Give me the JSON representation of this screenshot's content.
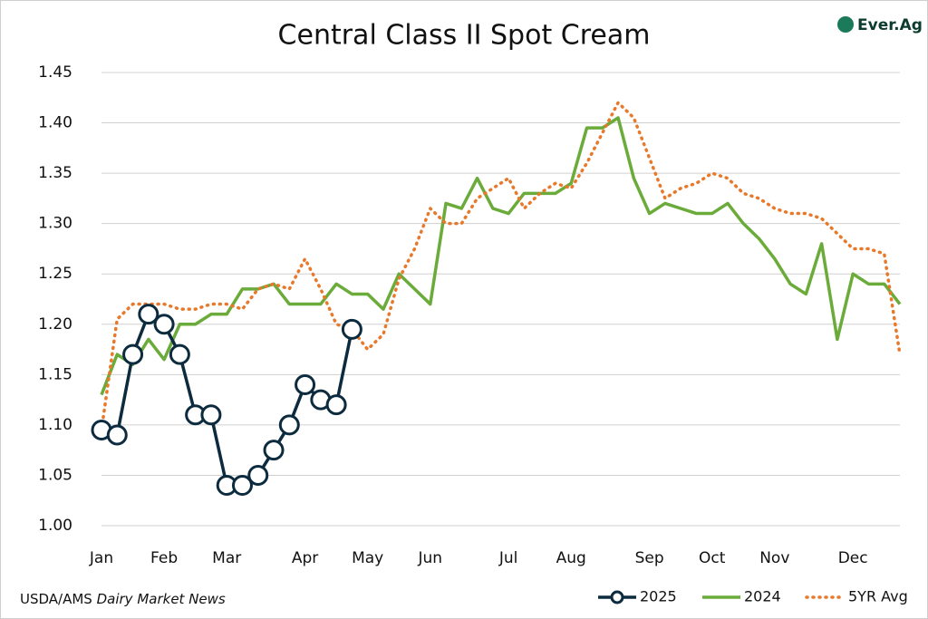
{
  "chart_data": {
    "type": "line",
    "title": "Central Class II Spot Cream",
    "source": "USDA/AMS",
    "source_italic": "Dairy Market News",
    "logo": "Ever.Ag",
    "categories": [
      "Jan",
      null,
      null,
      null,
      "Feb",
      null,
      null,
      null,
      "Mar",
      null,
      null,
      null,
      null,
      "Apr",
      null,
      null,
      null,
      "May",
      null,
      null,
      null,
      "Jun",
      null,
      null,
      null,
      null,
      "Jul",
      null,
      null,
      null,
      "Aug",
      null,
      null,
      null,
      null,
      "Sep",
      null,
      null,
      null,
      "Oct",
      null,
      null,
      null,
      "Nov",
      null,
      null,
      null,
      null,
      "Dec",
      null,
      null,
      null
    ],
    "series": [
      {
        "name": "2025",
        "color": "#0d2b3e",
        "markers": true,
        "values": [
          1.095,
          1.09,
          1.17,
          1.21,
          1.2,
          1.17,
          1.11,
          1.11,
          1.04,
          1.04,
          1.05,
          1.075,
          1.1,
          1.14,
          1.125,
          1.12,
          1.195,
          null,
          null,
          null,
          null,
          null,
          null,
          null,
          null,
          null,
          null,
          null,
          null,
          null,
          null,
          null,
          null,
          null,
          null,
          null,
          null,
          null,
          null,
          null,
          null,
          null,
          null,
          null,
          null,
          null,
          null,
          null,
          null,
          null,
          null,
          null
        ]
      },
      {
        "name": "2024",
        "color": "#6aab3a",
        "markers": false,
        "values": [
          1.13,
          1.17,
          1.16,
          1.185,
          1.165,
          1.2,
          1.2,
          1.21,
          1.21,
          1.235,
          1.235,
          1.24,
          1.22,
          1.22,
          1.22,
          1.24,
          1.23,
          1.23,
          1.215,
          1.25,
          1.235,
          1.22,
          1.32,
          1.315,
          1.345,
          1.315,
          1.31,
          1.33,
          1.33,
          1.33,
          1.34,
          1.395,
          1.395,
          1.405,
          1.345,
          1.31,
          1.32,
          1.315,
          1.31,
          1.31,
          1.32,
          1.3,
          1.285,
          1.265,
          1.24,
          1.23,
          1.28,
          1.185,
          1.25,
          1.24,
          1.24,
          1.22
        ]
      },
      {
        "name": "5YR Avg",
        "color": "#e8782a",
        "markers": false,
        "dash": true,
        "values": [
          1.095,
          1.205,
          1.22,
          1.22,
          1.22,
          1.215,
          1.215,
          1.22,
          1.22,
          1.215,
          1.235,
          1.24,
          1.235,
          1.265,
          1.235,
          1.2,
          1.195,
          1.175,
          1.19,
          1.245,
          1.275,
          1.315,
          1.3,
          1.3,
          1.325,
          1.335,
          1.345,
          1.315,
          1.33,
          1.34,
          1.335,
          1.36,
          1.39,
          1.42,
          1.405,
          1.365,
          1.325,
          1.335,
          1.34,
          1.35,
          1.345,
          1.33,
          1.325,
          1.315,
          1.31,
          1.31,
          1.305,
          1.29,
          1.275,
          1.275,
          1.27,
          1.17
        ]
      }
    ],
    "ylim": [
      1.0,
      1.45
    ],
    "yticks": [
      {
        "value": 1.0,
        "label": "1.00"
      },
      1.05,
      {
        "value": 1.1,
        "label": "1.10"
      },
      1.15,
      {
        "value": 1.2,
        "label": "1.20"
      },
      1.25,
      {
        "value": 1.3,
        "label": "1.30"
      },
      1.35,
      {
        "value": 1.4,
        "label": "1.40"
      },
      1.45
    ],
    "grid": true,
    "legend": "bottom-right"
  }
}
